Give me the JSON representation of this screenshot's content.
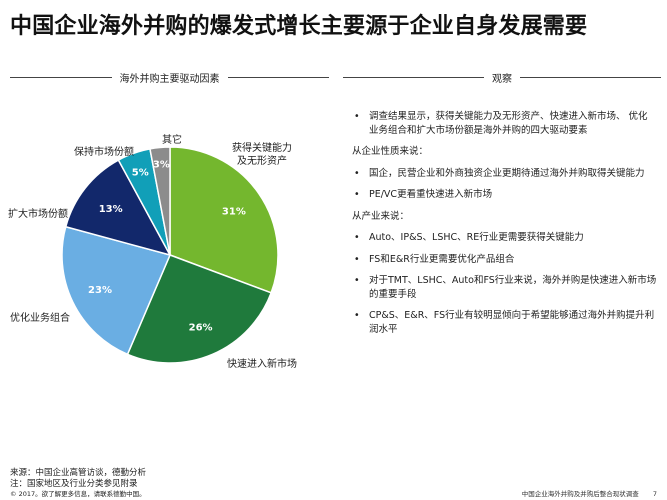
{
  "title": "中国企业海外并购的爆发式增长主要源于企业自身发展需要",
  "left_header": "海外并购主要驱动因素",
  "right_header": "观察",
  "chart_data": {
    "type": "pie",
    "slices": [
      {
        "label": "获得关键能力\n及无形资产",
        "value": 31,
        "value_label": "31%",
        "color": "#74b72e"
      },
      {
        "label": "快速进入新市场",
        "value": 26,
        "value_label": "26%",
        "color": "#1f7a3c"
      },
      {
        "label": "优化业务组合",
        "value": 23,
        "value_label": "23%",
        "color": "#6aaee3"
      },
      {
        "label": "扩大市场份额",
        "value": 13,
        "value_label": "13%",
        "color": "#12286b"
      },
      {
        "label": "保持市场份额",
        "value": 5,
        "value_label": "5%",
        "color": "#119fb8"
      },
      {
        "label": "其它",
        "value": 3,
        "value_label": "3%",
        "color": "#8c8c8c"
      }
    ]
  },
  "observations": [
    {
      "type": "bullet",
      "text": "调查结果显示，获得关键能力及无形资产、快速进入新市场、 优化业务组合和扩大市场份额是海外并购的四大驱动要素"
    },
    {
      "type": "heading",
      "text": "从企业性质来说："
    },
    {
      "type": "bullet",
      "text": "国企，民营企业和外商独资企业更期待通过海外并购取得关键能力"
    },
    {
      "type": "bullet",
      "text": "PE/VC更看重快速进入新市场"
    },
    {
      "type": "heading",
      "text": "从产业来说："
    },
    {
      "type": "bullet",
      "text": "Auto、IP&S、LSHC、RE行业更需要获得关键能力"
    },
    {
      "type": "bullet",
      "text": "FS和E&R行业更需要优化产品组合"
    },
    {
      "type": "bullet",
      "text": "对于TMT、LSHC、Auto和FS行业来说，海外并购是快速进入新市场的重要手段"
    },
    {
      "type": "bullet",
      "text": "CP&S、E&R、FS行业有较明显倾向于希望能够通过海外并购提升利润水平"
    }
  ],
  "bullet_symbol": "•",
  "footer": {
    "source": "来源：中国企业高管访谈，德勤分析",
    "note": "注：国家地区及行业分类参见附录",
    "copyright": "© 2017。欲了解更多信息，请联系德勤中国。",
    "report_title": "中国企业海外并购及并购后整合现状调查",
    "page": "7"
  }
}
